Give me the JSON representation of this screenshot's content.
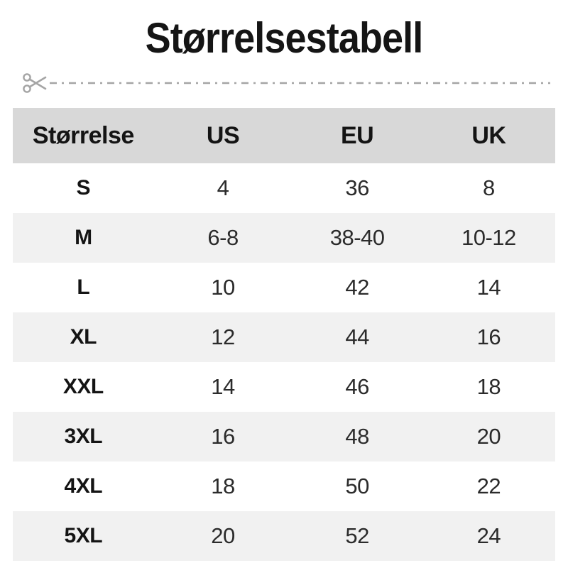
{
  "title": "Størrelsestabell",
  "cut_line": {
    "icon": "scissors-icon",
    "color": "#a5a5a5",
    "style": "dash-dot"
  },
  "colors": {
    "page_bg": "#ffffff",
    "header_bg": "#d8d8d8",
    "zebra_row_bg": "#f1f1f1",
    "row_bg": "#ffffff",
    "title_text": "#151515",
    "cell_text": "#2b2b2b"
  },
  "chart_data": {
    "type": "table",
    "title": "Størrelsestabell",
    "columns": [
      "Størrelse",
      "US",
      "EU",
      "UK"
    ],
    "rows": [
      [
        "S",
        "4",
        "36",
        "8"
      ],
      [
        "M",
        "6-8",
        "38-40",
        "10-12"
      ],
      [
        "L",
        "10",
        "42",
        "14"
      ],
      [
        "XL",
        "12",
        "44",
        "16"
      ],
      [
        "XXL",
        "14",
        "46",
        "18"
      ],
      [
        "3XL",
        "16",
        "48",
        "20"
      ],
      [
        "4XL",
        "18",
        "50",
        "22"
      ],
      [
        "5XL",
        "20",
        "52",
        "24"
      ]
    ],
    "layout_hints": {
      "header_row_shaded": true,
      "zebra_striping": "even data rows shaded",
      "alignment": "center"
    }
  }
}
